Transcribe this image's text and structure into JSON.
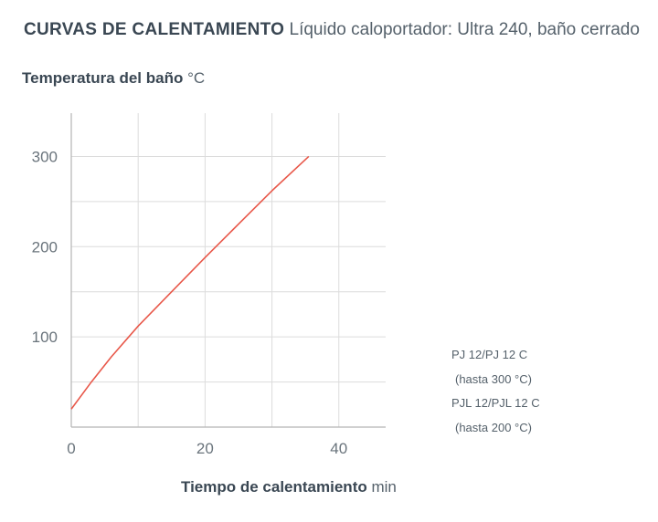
{
  "header": {
    "title": "CURVAS DE CALENTAMIENTO",
    "subtitle": "Líquido caloportador: Ultra 240, baño cerrado"
  },
  "axis": {
    "y_label": "Temperatura del baño",
    "y_unit": "°C",
    "x_label": "Tiempo de calentamiento",
    "x_unit": "min"
  },
  "legend": {
    "line1": "PJ 12/PJ 12 C",
    "line2": "(hasta 300 °C)",
    "line3": "PJL 12/PJL 12 C",
    "line4": "(hasta 200 °C)"
  },
  "colors": {
    "curve": "#e8584a",
    "grid": "#dcdcdc",
    "axis": "#b5b5b5"
  },
  "chart_data": {
    "type": "line",
    "title": "CURVAS DE CALENTAMIENTO",
    "subtitle": "Líquido caloportador: Ultra 240, baño cerrado",
    "xlabel": "Tiempo de calentamiento min",
    "ylabel": "Temperatura del baño °C",
    "xlim": [
      0,
      47
    ],
    "ylim": [
      0,
      348
    ],
    "x_ticks": [
      0,
      20,
      40
    ],
    "y_ticks": [
      100,
      200,
      300
    ],
    "x_grid": [
      0,
      10,
      20,
      30,
      40
    ],
    "y_grid": [
      50,
      100,
      150,
      200,
      250,
      300
    ],
    "grid": true,
    "series": [
      {
        "x": [
          0,
          3,
          6,
          10,
          15,
          20,
          25,
          30,
          35.5
        ],
        "y": [
          20,
          50,
          78,
          112,
          150,
          188,
          225,
          262,
          300
        ]
      }
    ]
  }
}
